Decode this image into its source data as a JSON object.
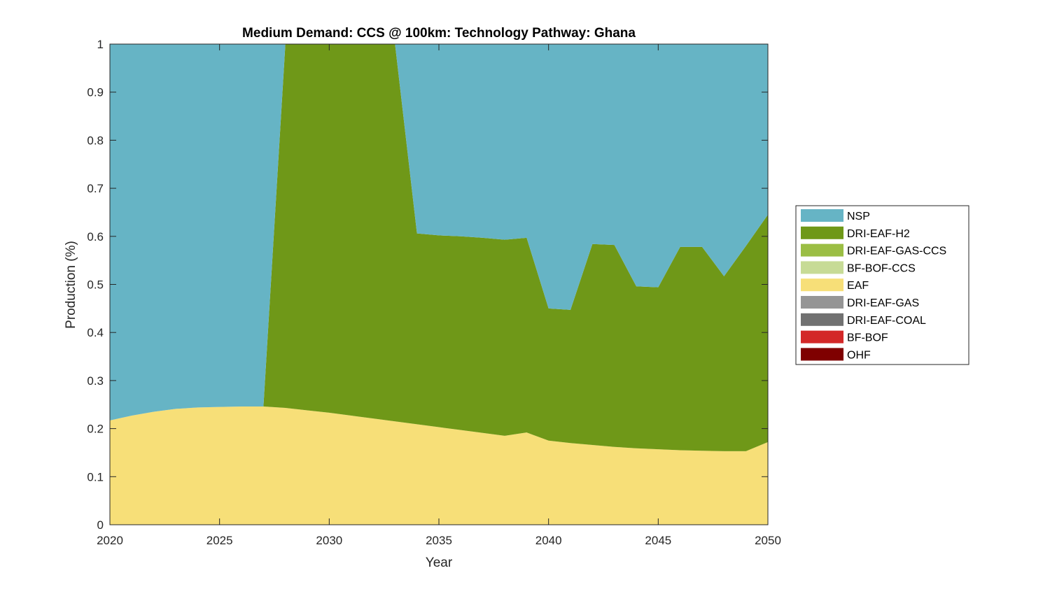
{
  "chart_data": {
    "type": "area",
    "stacked": true,
    "title": "Medium Demand: CCS @ 100km: Technology Pathway: Ghana",
    "xlabel": "Year",
    "ylabel": "Production (%)",
    "xlim": [
      2020,
      2050
    ],
    "ylim": [
      0,
      1
    ],
    "xticks": [
      "2020",
      "2025",
      "2030",
      "2035",
      "2040",
      "2045",
      "2050"
    ],
    "yticks": [
      "0",
      "0.1",
      "0.2",
      "0.3",
      "0.4",
      "0.5",
      "0.6",
      "0.7",
      "0.8",
      "0.9",
      "1"
    ],
    "legend_position": "right",
    "x": [
      2020,
      2021,
      2022,
      2023,
      2024,
      2025,
      2026,
      2027,
      2028,
      2029,
      2030,
      2031,
      2032,
      2033,
      2034,
      2035,
      2036,
      2037,
      2038,
      2039,
      2040,
      2041,
      2042,
      2043,
      2044,
      2045,
      2046,
      2047,
      2048,
      2049,
      2050
    ],
    "series": [
      {
        "name": "OHF",
        "color": "#7f0000",
        "values": [
          0,
          0,
          0,
          0,
          0,
          0,
          0,
          0,
          0,
          0,
          0,
          0,
          0,
          0,
          0,
          0,
          0,
          0,
          0,
          0,
          0,
          0,
          0,
          0,
          0,
          0,
          0,
          0,
          0,
          0,
          0
        ]
      },
      {
        "name": "BF-BOF",
        "color": "#d32828",
        "values": [
          0,
          0,
          0,
          0,
          0,
          0,
          0,
          0,
          0,
          0,
          0,
          0,
          0,
          0,
          0,
          0,
          0,
          0,
          0,
          0,
          0,
          0,
          0,
          0,
          0,
          0,
          0,
          0,
          0,
          0,
          0
        ]
      },
      {
        "name": "DRI-EAF-COAL",
        "color": "#717171",
        "values": [
          0,
          0,
          0,
          0,
          0,
          0,
          0,
          0,
          0,
          0,
          0,
          0,
          0,
          0,
          0,
          0,
          0,
          0,
          0,
          0,
          0,
          0,
          0,
          0,
          0,
          0,
          0,
          0,
          0,
          0,
          0
        ]
      },
      {
        "name": "DRI-EAF-GAS",
        "color": "#959595",
        "values": [
          0,
          0,
          0,
          0,
          0,
          0,
          0,
          0,
          0,
          0,
          0,
          0,
          0,
          0,
          0,
          0,
          0,
          0,
          0,
          0,
          0,
          0,
          0,
          0,
          0,
          0,
          0,
          0,
          0,
          0,
          0
        ]
      },
      {
        "name": "EAF",
        "color": "#f7df78",
        "values": [
          0.217,
          0.227,
          0.235,
          0.241,
          0.244,
          0.245,
          0.246,
          0.246,
          0.243,
          0.238,
          0.233,
          0.227,
          0.221,
          0.215,
          0.209,
          0.203,
          0.197,
          0.191,
          0.185,
          0.192,
          0.175,
          0.17,
          0.166,
          0.162,
          0.159,
          0.157,
          0.155,
          0.154,
          0.153,
          0.153,
          0.172
        ]
      },
      {
        "name": "BF-BOF-CCS",
        "color": "#c7db96",
        "values": [
          0,
          0,
          0,
          0,
          0,
          0,
          0,
          0,
          0,
          0,
          0,
          0,
          0,
          0,
          0,
          0,
          0,
          0,
          0,
          0,
          0,
          0,
          0,
          0,
          0,
          0,
          0,
          0,
          0,
          0,
          0
        ]
      },
      {
        "name": "DRI-EAF-GAS-CCS",
        "color": "#9bbe44",
        "values": [
          0,
          0,
          0,
          0,
          0,
          0,
          0,
          0,
          0,
          0,
          0,
          0,
          0,
          0,
          0,
          0,
          0,
          0,
          0,
          0,
          0,
          0,
          0,
          0,
          0,
          0,
          0,
          0,
          0,
          0,
          0
        ]
      },
      {
        "name": "DRI-EAF-H2",
        "color": "#6f9818",
        "values": [
          0,
          0,
          0,
          0,
          0,
          0,
          0,
          0,
          0.757,
          0.762,
          0.767,
          0.773,
          0.779,
          0.785,
          0.397,
          0.399,
          0.403,
          0.406,
          0.408,
          0.405,
          0.275,
          0.277,
          0.418,
          0.42,
          0.337,
          0.337,
          0.423,
          0.424,
          0.364,
          0.427,
          0.473
        ]
      },
      {
        "name": "NSP",
        "color": "#66b4c5",
        "values": [
          0.783,
          0.773,
          0.765,
          0.759,
          0.756,
          0.755,
          0.754,
          0.754,
          0,
          0,
          0,
          0,
          0,
          0,
          0.394,
          0.398,
          0.4,
          0.403,
          0.407,
          0.403,
          0.55,
          0.553,
          0.416,
          0.418,
          0.504,
          0.506,
          0.422,
          0.422,
          0.483,
          0.42,
          0.355
        ]
      }
    ],
    "legend_order": [
      "NSP",
      "DRI-EAF-H2",
      "DRI-EAF-GAS-CCS",
      "BF-BOF-CCS",
      "EAF",
      "DRI-EAF-GAS",
      "DRI-EAF-COAL",
      "BF-BOF",
      "OHF"
    ]
  }
}
